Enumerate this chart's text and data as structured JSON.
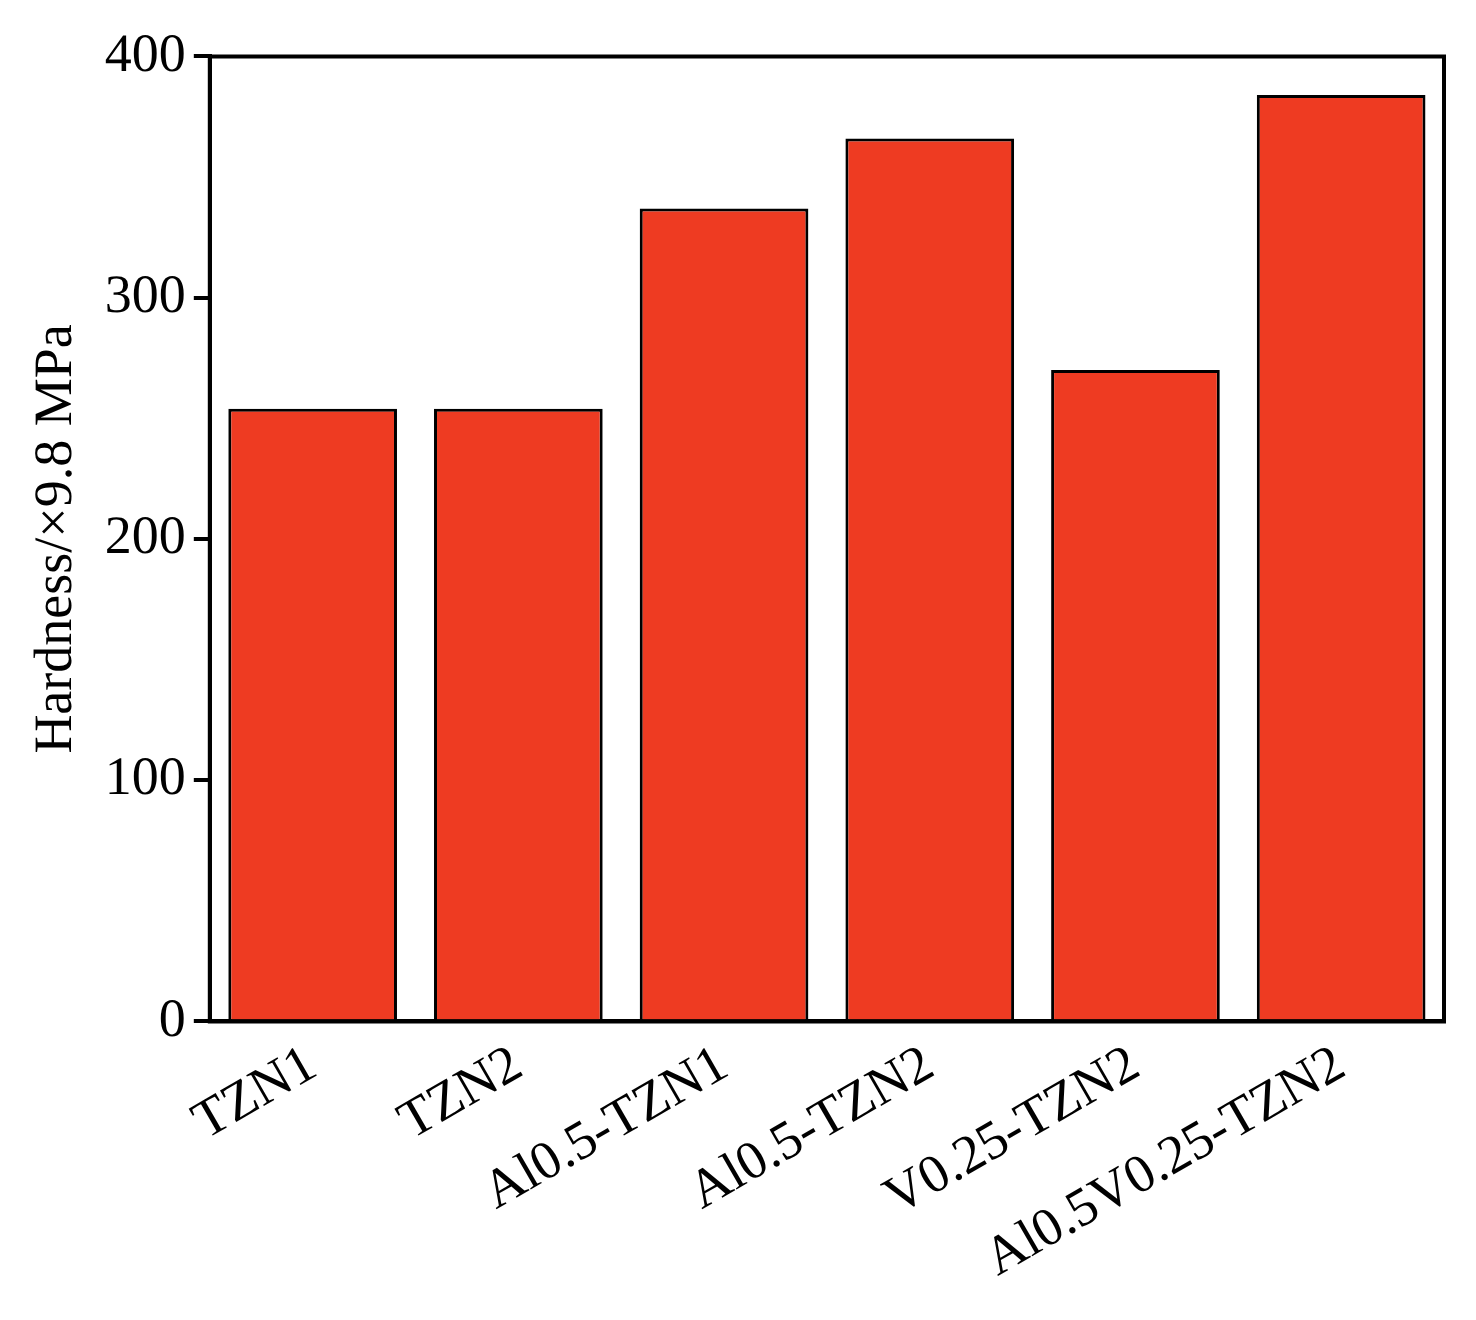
{
  "chart_data": {
    "type": "bar",
    "ylabel": "Hardness/×9.8 MPa",
    "categories": [
      "TZN1",
      "TZN2",
      "Al0.5-TZN1",
      "Al0.5-TZN2",
      "V0.25-TZN2",
      "Al0.5V0.25-TZN2"
    ],
    "values": [
      254,
      254,
      337,
      366,
      270,
      384
    ],
    "color": "#ee3b22",
    "ylim": [
      0,
      400
    ],
    "yticks": [
      0,
      100,
      200,
      300,
      400
    ],
    "grid": false,
    "legend": false
  }
}
